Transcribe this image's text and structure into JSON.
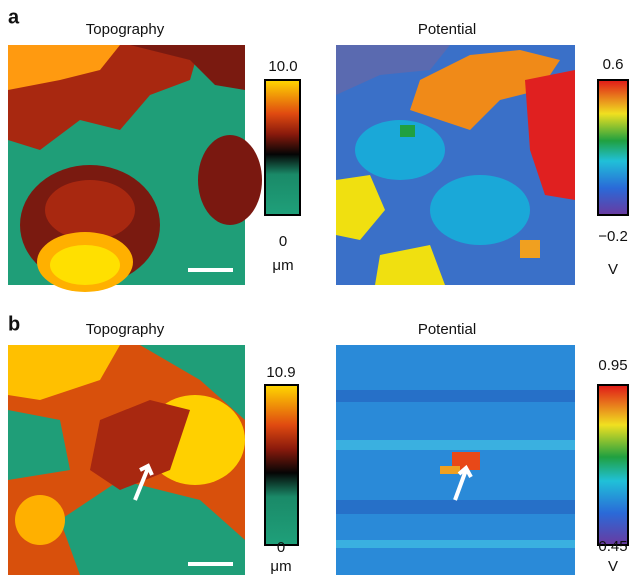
{
  "panels": [
    {
      "label": "a",
      "topography": {
        "title": "Topography",
        "colorbar": {
          "max": "10.0",
          "min": "0",
          "unit": "μm"
        }
      },
      "potential": {
        "title": "Potential",
        "colorbar": {
          "max": "0.6",
          "min": "−0.2",
          "unit": "V"
        }
      }
    },
    {
      "label": "b",
      "topography": {
        "title": "Topography",
        "colorbar": {
          "max": "10.9",
          "min": "0",
          "unit": "μm"
        }
      },
      "potential": {
        "title": "Potential",
        "colorbar": {
          "max": "0.95",
          "min": "0.45",
          "unit": "V"
        }
      }
    }
  ]
}
